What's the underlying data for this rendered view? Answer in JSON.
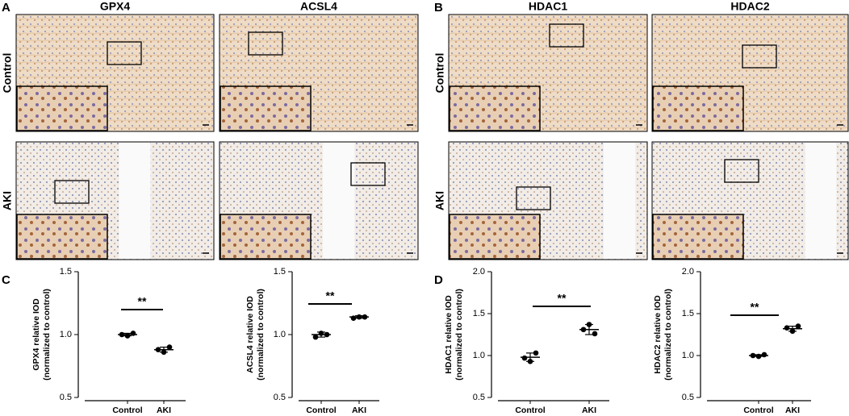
{
  "panels": [
    {
      "label": "A",
      "columns": [
        "GPX4",
        "ACSL4"
      ],
      "rows": [
        "Control",
        "AKI"
      ]
    },
    {
      "label": "B",
      "columns": [
        "HDAC1",
        "HDAC2"
      ],
      "rows": [
        "Control",
        "AKI"
      ]
    }
  ],
  "chart_panel_labels": [
    "C",
    "D"
  ],
  "chart_data": [
    {
      "type": "scatter",
      "ylabel": "GPX4 relative IOD",
      "ylabel2": "(normalized to control)",
      "annotation": "**",
      "categories": [
        "Control",
        "AKI"
      ],
      "values": [
        [
          1.0,
          0.99,
          1.01
        ],
        [
          0.88,
          0.86,
          0.9
        ]
      ],
      "mean": [
        1.0,
        0.88
      ],
      "sd": [
        0.01,
        0.02
      ],
      "color": "#000000",
      "ylim": [
        0.5,
        1.5
      ],
      "yticks": [
        {
          "value": 0.5,
          "label": "0.5"
        },
        {
          "value": 1.0,
          "label": "1.0"
        },
        {
          "value": 1.5,
          "label": "1.5"
        }
      ]
    },
    {
      "type": "scatter",
      "ylabel": "ACSL4 relative IOD",
      "ylabel2": "(normalized to control)",
      "annotation": "**",
      "categories": [
        "Control",
        "AKI"
      ],
      "values": [
        [
          0.98,
          1.01,
          1.0
        ],
        [
          1.13,
          1.14,
          1.14
        ]
      ],
      "mean": [
        1.0,
        1.14
      ],
      "sd": [
        0.02,
        0.01
      ],
      "color": "#000000",
      "ylim": [
        0.5,
        1.5
      ],
      "yticks": [
        {
          "value": 0.5,
          "label": "0.5"
        },
        {
          "value": 1.0,
          "label": "1.0"
        },
        {
          "value": 1.5,
          "label": "1.5"
        }
      ]
    },
    {
      "type": "scatter",
      "ylabel": "HDAC1 relative IOD",
      "ylabel2": "(normalized to control)",
      "annotation": "**",
      "categories": [
        "Control",
        "AKI"
      ],
      "values": [
        [
          0.97,
          0.93,
          1.03
        ],
        [
          1.31,
          1.37,
          1.26
        ]
      ],
      "mean": [
        0.98,
        1.31
      ],
      "sd": [
        0.05,
        0.06
      ],
      "color": "#000000",
      "ylim": [
        0.5,
        2.0
      ],
      "yticks": [
        {
          "value": 0.5,
          "label": "0.5"
        },
        {
          "value": 1.0,
          "label": "1.0"
        },
        {
          "value": 1.5,
          "label": "1.5"
        },
        {
          "value": 2.0,
          "label": "2.0"
        }
      ]
    },
    {
      "type": "scatter",
      "ylabel": "HDAC2 relative IOD",
      "ylabel2": "(normalized to control)",
      "annotation": "**",
      "categories": [
        "Control",
        "AKI"
      ],
      "values": [
        [
          1.0,
          0.99,
          1.01
        ],
        [
          1.33,
          1.29,
          1.35
        ]
      ],
      "mean": [
        1.0,
        1.32
      ],
      "sd": [
        0.01,
        0.03
      ],
      "color": "#000000",
      "ylim": [
        0.5,
        2.0
      ],
      "yticks": [
        {
          "value": 0.5,
          "label": "0.5"
        },
        {
          "value": 1.0,
          "label": "1.0"
        },
        {
          "value": 1.5,
          "label": "1.5"
        },
        {
          "value": 2.0,
          "label": "2.0"
        }
      ]
    }
  ]
}
